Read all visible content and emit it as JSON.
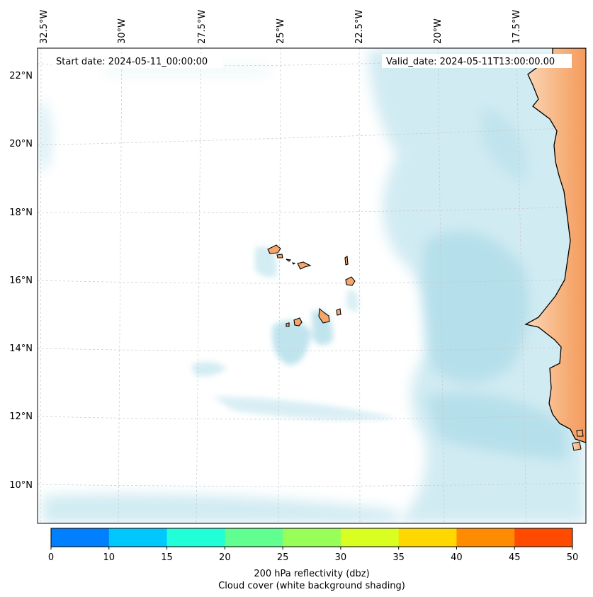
{
  "map": {
    "start_date": "Start date: 2024-05-11_00:00:00",
    "valid_date": "Valid_date: 2024-05-11T13:00:00.00",
    "lon_labels": [
      "32.5°W",
      "30°W",
      "27.5°W",
      "25°W",
      "22.5°W",
      "20°W",
      "17.5°W"
    ],
    "lat_labels": [
      "22°N",
      "20°N",
      "18°N",
      "16°N",
      "14°N",
      "12°N",
      "10°N"
    ]
  },
  "colorbar": {
    "ticks": [
      "0",
      "10",
      "15",
      "20",
      "25",
      "30",
      "35",
      "40",
      "45",
      "50"
    ],
    "colors": [
      "#0080ff",
      "#00c8ff",
      "#20ffd8",
      "#60ff90",
      "#98ff58",
      "#d8ff20",
      "#ffd800",
      "#ff8c00",
      "#ff4a00"
    ],
    "label": "200 hPa reflectivity (dbz)",
    "sublabel": "Cloud cover (white background shading)"
  },
  "colors": {
    "land": "#f5a66b",
    "land_light": "#fbd2ae",
    "cloud": "#acdbe8",
    "grid": "#c8c8c8"
  }
}
